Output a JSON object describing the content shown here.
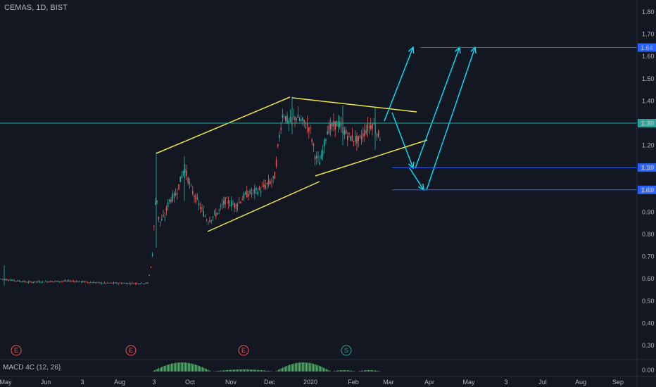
{
  "header": {
    "symbol_line": "CEMAS, 1D, BIST"
  },
  "indicator": {
    "label": "MACD 4C (12, 26)",
    "axis_label": "0.00"
  },
  "colors": {
    "background": "#131722",
    "up": "#26a69a",
    "down": "#ef5350",
    "pattern_line": "#f0e442",
    "arrow": "#00e5ff",
    "level": "#2962ff",
    "level_label_bg": "#2962ff",
    "macd_hist": "#26c641",
    "grid": "#1e222d"
  },
  "chart_data": {
    "type": "line",
    "title": "CEMAS, 1D, BIST",
    "x_ticks": [
      "May",
      "Jun",
      "3",
      "Aug",
      "3",
      "Oct",
      "Nov",
      "Dec",
      "2020",
      "Feb",
      "Mar",
      "Apr",
      "May",
      "3",
      "Jul",
      "Aug",
      "Sep"
    ],
    "y_ticks": [
      1.8,
      1.7,
      1.6,
      1.5,
      1.4,
      1.3,
      1.2,
      1.1,
      1.0,
      0.9,
      0.8,
      0.7,
      0.6,
      0.5,
      0.4,
      0.3
    ],
    "ylim": [
      0.28,
      1.82
    ],
    "price_series": {
      "name": "CEMAS",
      "segments": [
        {
          "x": [
            "May",
            "Aug"
          ],
          "y": [
            0.59,
            0.58
          ]
        },
        {
          "x": [
            "Aug",
            "3 (Sep)"
          ],
          "y": [
            0.58,
            0.62
          ]
        },
        {
          "x": [
            "3 (Sep)",
            "Oct"
          ],
          "y": [
            1.15,
            0.9
          ]
        },
        {
          "x": [
            "Oct",
            "Dec"
          ],
          "y": [
            0.88,
            1.05
          ]
        },
        {
          "x": [
            "Dec",
            "Feb"
          ],
          "y": [
            1.38,
            1.2
          ]
        }
      ],
      "approximate_path": [
        {
          "x": "May",
          "y": 0.6
        },
        {
          "x": "Jun",
          "y": 0.58
        },
        {
          "x": "3 (Jul)",
          "y": 0.59
        },
        {
          "x": "Aug",
          "y": 0.58
        },
        {
          "x": "3 (Sep)",
          "y": 0.95
        },
        {
          "x": "3 (Sep) late",
          "y": 1.05
        },
        {
          "x": "Oct",
          "y": 0.88
        },
        {
          "x": "Oct late",
          "y": 0.9
        },
        {
          "x": "Nov",
          "y": 0.95
        },
        {
          "x": "Nov late",
          "y": 1.0
        },
        {
          "x": "Dec",
          "y": 1.2
        },
        {
          "x": "Dec mid",
          "y": 1.33
        },
        {
          "x": "Dec late",
          "y": 1.28
        },
        {
          "x": "2020",
          "y": 1.15
        },
        {
          "x": "Jan mid",
          "y": 1.27
        },
        {
          "x": "Feb",
          "y": 1.26
        },
        {
          "x": "Feb late",
          "y": 1.24
        }
      ]
    },
    "horizontal_levels": [
      {
        "value": 1.64,
        "label": "1.64"
      },
      {
        "value": 1.3,
        "label": "1.30"
      },
      {
        "value": 1.1,
        "label": "1.10"
      },
      {
        "value": 1.0,
        "label": "1.00"
      }
    ],
    "annotations": {
      "pattern": "rising wedge/channel with upper and lower yellow trend lines",
      "arrows": "projected down to 1.10 / 1.00, then up toward 1.64",
      "event_markers": [
        "E",
        "E",
        "E",
        "S"
      ]
    },
    "grid": false
  }
}
